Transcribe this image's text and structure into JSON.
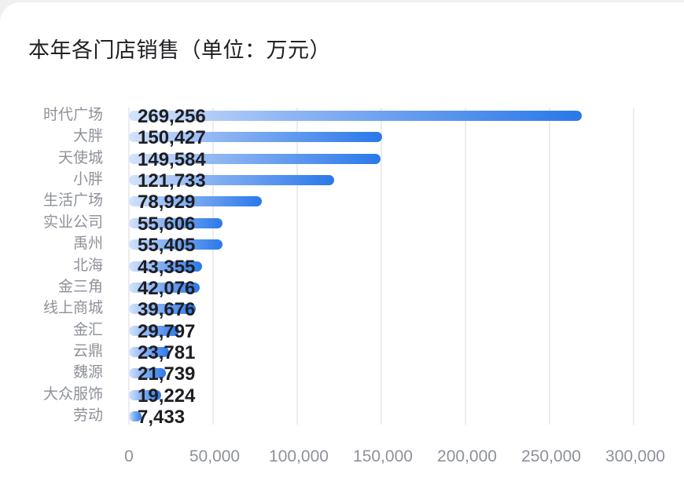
{
  "title": "本年各门店销售（单位：万元）",
  "colors": {
    "bar_start": "#d3e3fb",
    "bar_end": "#2a78ea",
    "grid": "#ececef",
    "label": "#8e9199",
    "value": "#1d1e22"
  },
  "axis": {
    "ticks": [
      "0",
      "50,000",
      "100,000",
      "150,000",
      "200,000",
      "250,000",
      "300,000"
    ]
  },
  "bars": [
    {
      "label": "时代广场",
      "value": 269256,
      "display": "269,256"
    },
    {
      "label": "大胖",
      "value": 150427,
      "display": "150,427"
    },
    {
      "label": "天使城",
      "value": 149584,
      "display": "149,584"
    },
    {
      "label": "小胖",
      "value": 121733,
      "display": "121,733"
    },
    {
      "label": "生活广场",
      "value": 78929,
      "display": "78,929"
    },
    {
      "label": "实业公司",
      "value": 55606,
      "display": "55,606"
    },
    {
      "label": "禹州",
      "value": 55405,
      "display": "55,405"
    },
    {
      "label": "北海",
      "value": 43355,
      "display": "43,355"
    },
    {
      "label": "金三角",
      "value": 42076,
      "display": "42,076"
    },
    {
      "label": "线上商城",
      "value": 39676,
      "display": "39,676"
    },
    {
      "label": "金汇",
      "value": 29797,
      "display": "29,797"
    },
    {
      "label": "云鼎",
      "value": 23781,
      "display": "23,781"
    },
    {
      "label": "魏源",
      "value": 21739,
      "display": "21,739"
    },
    {
      "label": "大众服饰",
      "value": 19224,
      "display": "19,224"
    },
    {
      "label": "劳动",
      "value": 7433,
      "display": "7,433"
    }
  ],
  "chart_data": {
    "type": "bar",
    "orientation": "horizontal",
    "title": "本年各门店销售（单位：万元）",
    "categories": [
      "时代广场",
      "大胖",
      "天使城",
      "小胖",
      "生活广场",
      "实业公司",
      "禹州",
      "北海",
      "金三角",
      "线上商城",
      "金汇",
      "云鼎",
      "魏源",
      "大众服饰",
      "劳动"
    ],
    "values": [
      269256,
      150427,
      149584,
      121733,
      78929,
      55606,
      55405,
      43355,
      42076,
      39676,
      29797,
      23781,
      21739,
      19224,
      7433
    ],
    "xlabel": "",
    "ylabel": "",
    "xlim": [
      0,
      300000
    ],
    "xticks": [
      0,
      50000,
      100000,
      150000,
      200000,
      250000,
      300000
    ],
    "grid": true,
    "legend": "none",
    "data_labels": true
  }
}
